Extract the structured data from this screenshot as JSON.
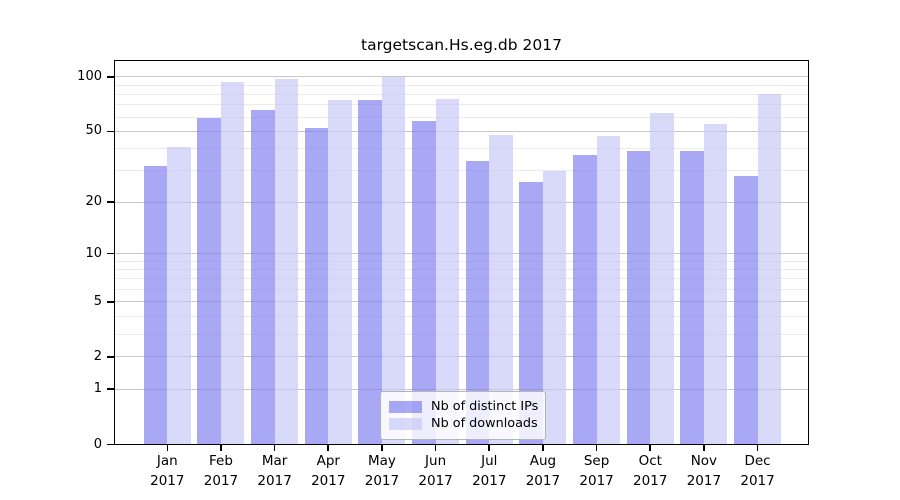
{
  "chart_data": {
    "type": "bar",
    "title": "targetscan.Hs.eg.db 2017",
    "categories": [
      "Jan",
      "Feb",
      "Mar",
      "Apr",
      "May",
      "Jun",
      "Jul",
      "Aug",
      "Sep",
      "Oct",
      "Nov",
      "Dec"
    ],
    "year_label": "2017",
    "series": [
      {
        "name": "Nb of distinct IPs",
        "color": "rgba(122,122,238,0.65)",
        "values": [
          32,
          59,
          66,
          52,
          75,
          57,
          34,
          26,
          37,
          39,
          39,
          28
        ]
      },
      {
        "name": "Nb of downloads",
        "color": "rgba(197,197,246,0.65)",
        "values": [
          41,
          94,
          98,
          75,
          100,
          76,
          48,
          30,
          47,
          63,
          55,
          80
        ]
      }
    ],
    "y_scale": "log10(value+1)",
    "ylim": [
      0,
      100
    ],
    "y_ticks": [
      0,
      1,
      2,
      5,
      10,
      20,
      50,
      100
    ],
    "y_minor_ticks": [
      3,
      4,
      6,
      7,
      8,
      9,
      30,
      40,
      60,
      70,
      80,
      90
    ],
    "grid": true,
    "grid_major_color": "#c8c8c8",
    "grid_minor_color": "#ebebeb",
    "legend_position": "bottom-center-inside"
  }
}
